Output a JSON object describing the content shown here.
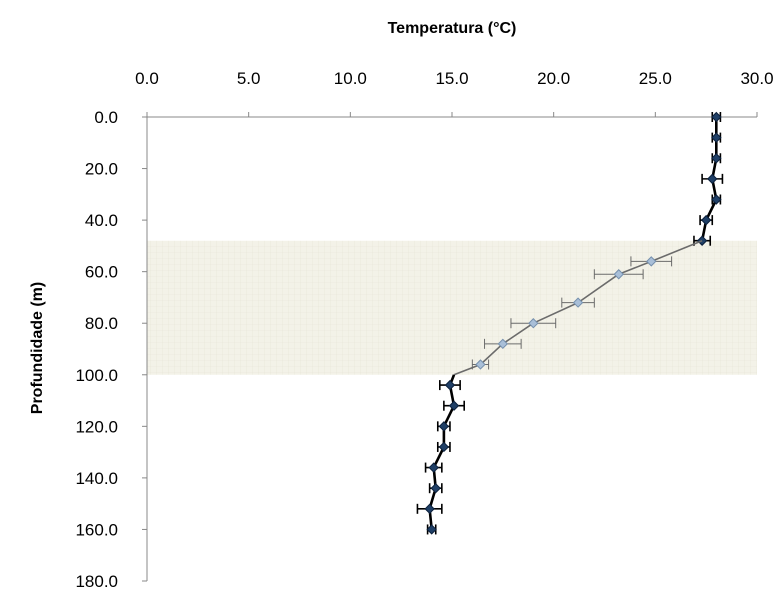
{
  "chart_data": {
    "type": "line",
    "title": "",
    "xlabel": "Temperatura (°C)",
    "ylabel": "Profundidade (m)",
    "x_axis_position": "top",
    "y_axis_inverted": true,
    "xlim": [
      0,
      30
    ],
    "ylim": [
      0,
      180
    ],
    "x_ticks": [
      "0.0",
      "5.0",
      "10.0",
      "15.0",
      "20.0",
      "25.0",
      "30.0"
    ],
    "y_ticks": [
      "0.0",
      "20.0",
      "40.0",
      "60.0",
      "80.0",
      "100.0",
      "120.0",
      "140.0",
      "160.0",
      "180.0"
    ],
    "grid": false,
    "legend": "none",
    "highlight_band": {
      "depth_from": 48,
      "depth_to": 100,
      "color": "#f3f2e8"
    },
    "series": [
      {
        "style": "dark-markers-black-line",
        "points": [
          {
            "x": 28.0,
            "y": 0,
            "err": 0.2
          },
          {
            "x": 28.0,
            "y": 8,
            "err": 0.2
          },
          {
            "x": 28.0,
            "y": 16,
            "err": 0.2
          },
          {
            "x": 27.8,
            "y": 24,
            "err": 0.5
          },
          {
            "x": 28.0,
            "y": 32,
            "err": 0.2
          },
          {
            "x": 27.5,
            "y": 40,
            "err": 0.3
          },
          {
            "x": 27.3,
            "y": 48,
            "err": 0.4
          }
        ]
      },
      {
        "style": "light-markers-gray-line",
        "points": [
          {
            "x": 27.3,
            "y": 48,
            "err": 0
          },
          {
            "x": 24.8,
            "y": 56,
            "err": 1.0
          },
          {
            "x": 23.2,
            "y": 61,
            "err": 1.2
          },
          {
            "x": 21.2,
            "y": 72,
            "err": 0.8
          },
          {
            "x": 19.0,
            "y": 80,
            "err": 1.1
          },
          {
            "x": 17.5,
            "y": 88,
            "err": 0.9
          },
          {
            "x": 16.4,
            "y": 96,
            "err": 0.4
          },
          {
            "x": 15.1,
            "y": 100,
            "err": 0
          }
        ]
      },
      {
        "style": "dark-markers-black-line",
        "points": [
          {
            "x": 15.1,
            "y": 100,
            "err": 0
          },
          {
            "x": 14.9,
            "y": 104,
            "err": 0.5
          },
          {
            "x": 15.1,
            "y": 112,
            "err": 0.5
          },
          {
            "x": 14.6,
            "y": 120,
            "err": 0.3
          },
          {
            "x": 14.6,
            "y": 128,
            "err": 0.3
          },
          {
            "x": 14.1,
            "y": 136,
            "err": 0.4
          },
          {
            "x": 14.2,
            "y": 144,
            "err": 0.3
          },
          {
            "x": 13.9,
            "y": 152,
            "err": 0.6
          },
          {
            "x": 14.0,
            "y": 160,
            "err": 0.2
          }
        ]
      }
    ]
  }
}
